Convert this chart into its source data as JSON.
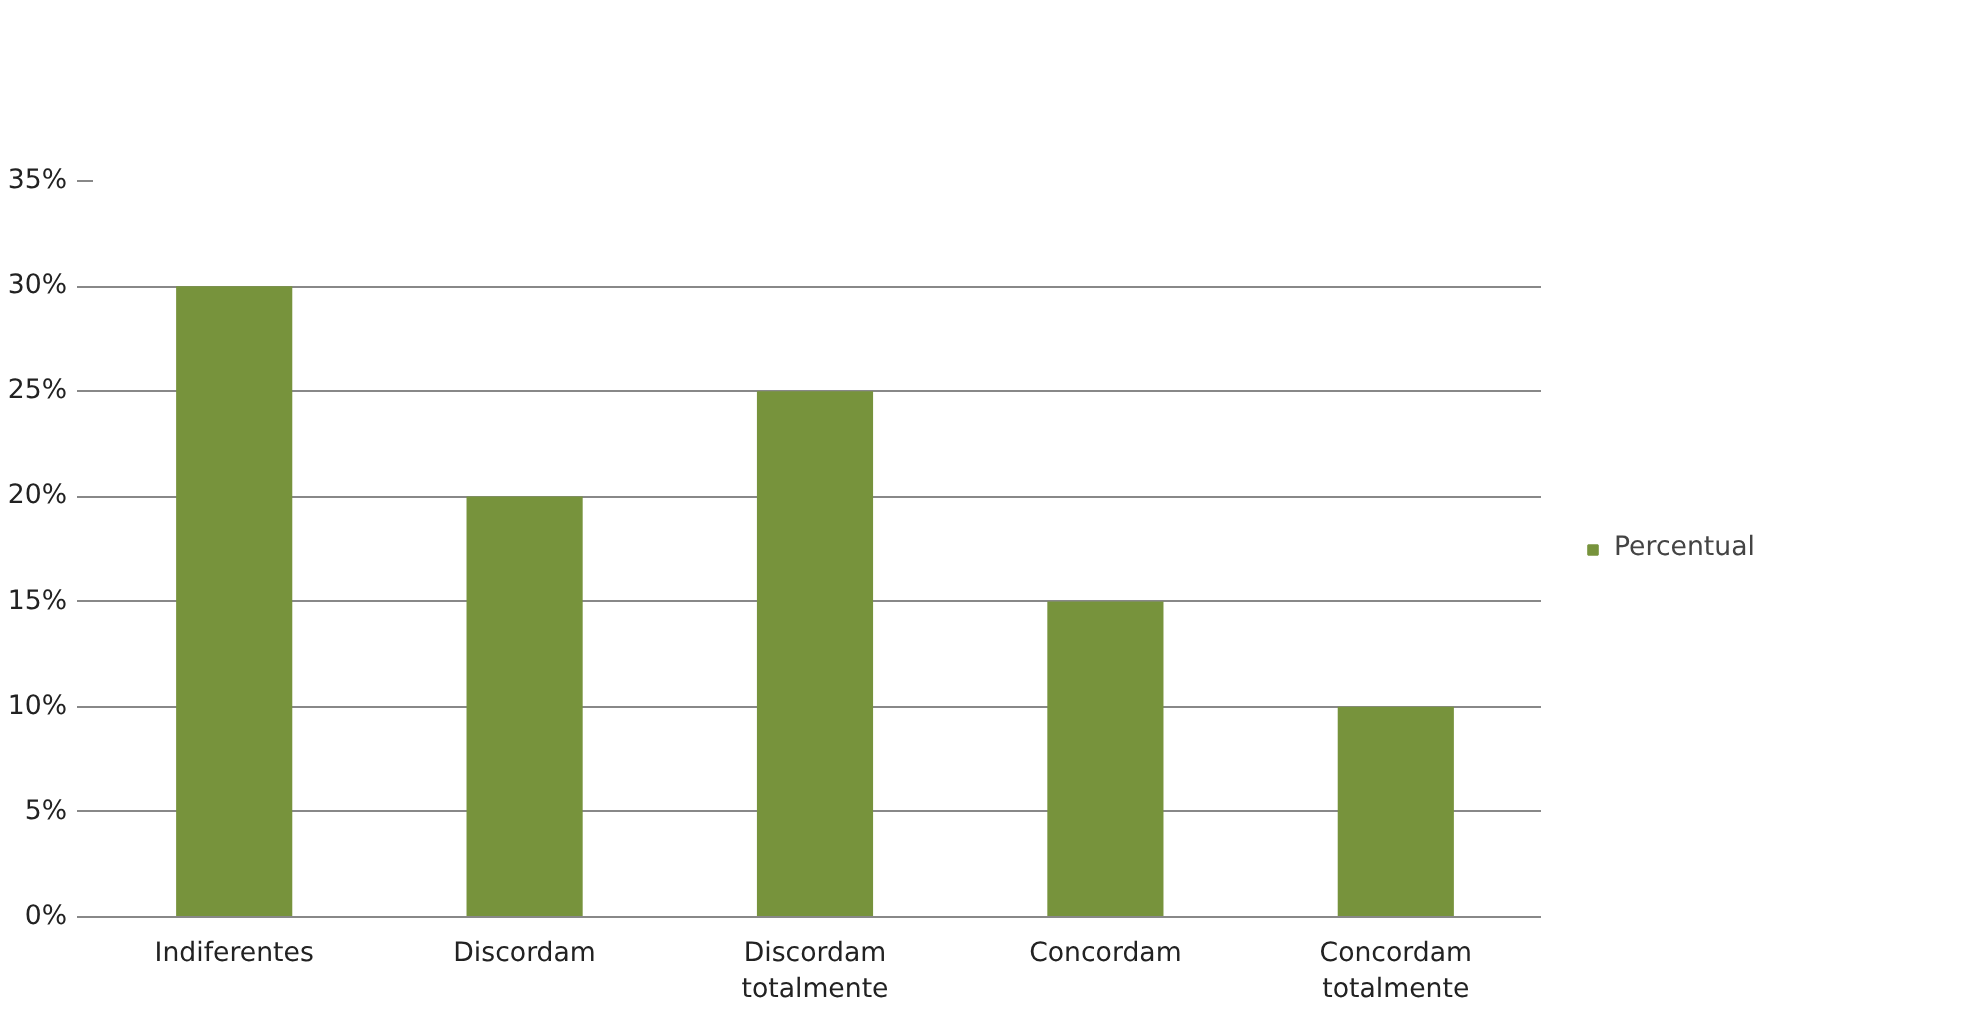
{
  "chart_data": {
    "type": "bar",
    "categories": [
      "Indiferentes",
      "Discordam",
      "Discordam\ntotalmente",
      "Concordam",
      "Concordam\ntotalmente"
    ],
    "series": [
      {
        "name": "Percentual",
        "color": "#77933c",
        "values": [
          30,
          20,
          25,
          15,
          10
        ]
      }
    ],
    "ylim": [
      0,
      35
    ],
    "yticks": [
      {
        "value": 0,
        "label": "0%"
      },
      {
        "value": 5,
        "label": "5%"
      },
      {
        "value": 10,
        "label": "10%"
      },
      {
        "value": 15,
        "label": "15%"
      },
      {
        "value": 20,
        "label": "20%"
      },
      {
        "value": 25,
        "label": "25%"
      },
      {
        "value": 30,
        "label": "30%"
      },
      {
        "value": 35,
        "label": "35%"
      }
    ],
    "grid": "y",
    "legend": "right"
  }
}
